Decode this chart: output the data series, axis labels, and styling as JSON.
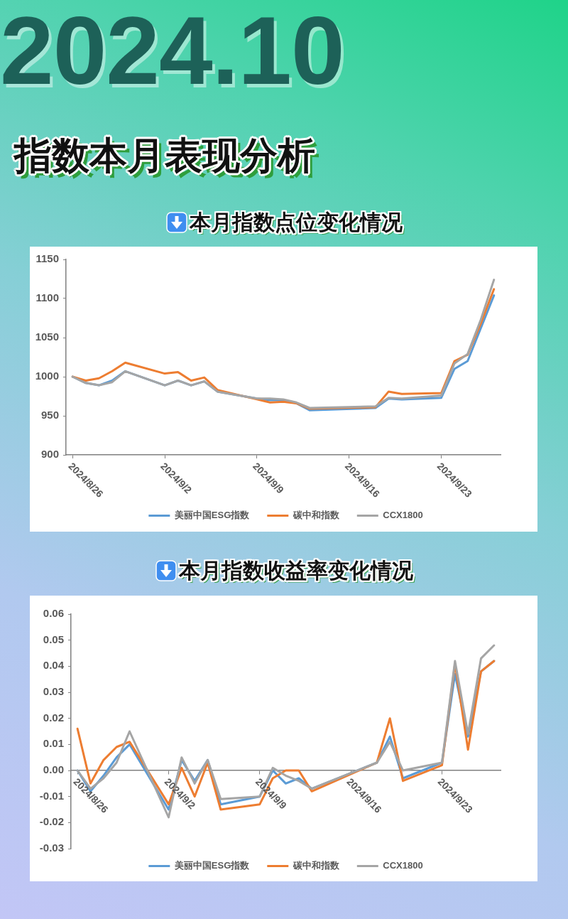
{
  "chart_data": [
    {
      "type": "line",
      "title": "指数本月表现分析",
      "subtitle": "本月指数点位变化情况",
      "annotations": [
        "2024.10"
      ],
      "x": [
        "2024-08-26",
        "2024-08-27",
        "2024-08-28",
        "2024-08-29",
        "2024-08-30",
        "2024-09-02",
        "2024-09-03",
        "2024-09-04",
        "2024-09-05",
        "2024-09-06",
        "2024-09-09",
        "2024-09-10",
        "2024-09-11",
        "2024-09-12",
        "2024-09-13",
        "2024-09-18",
        "2024-09-19",
        "2024-09-20",
        "2024-09-23",
        "2024-09-24",
        "2024-09-25",
        "2024-09-26",
        "2024-09-27"
      ],
      "series": [
        {
          "name": "美丽中国ESG指数",
          "color": "#5b9bd5",
          "values": [
            1000,
            992,
            989,
            995,
            1007,
            989,
            995,
            989,
            994,
            981,
            972,
            970,
            970,
            966,
            957,
            960,
            972,
            971,
            973,
            1010,
            1020,
            1062,
            1104
          ]
        },
        {
          "name": "碳中和指数",
          "color": "#ed7d31",
          "values": [
            1000,
            995,
            998,
            1007,
            1018,
            1004,
            1006,
            995,
            999,
            983,
            971,
            967,
            968,
            966,
            959,
            961,
            981,
            978,
            979,
            1020,
            1028,
            1068,
            1112
          ]
        },
        {
          "name": "CCX1800",
          "color": "#a5a5a5",
          "values": [
            1000,
            992,
            989,
            993,
            1007,
            989,
            995,
            989,
            994,
            981,
            972,
            972,
            971,
            967,
            960,
            962,
            973,
            972,
            976,
            1017,
            1029,
            1073,
            1124
          ]
        }
      ],
      "xlim": [
        "2024-08-25T12:00",
        "2024-09-27T12:00"
      ],
      "xticks": [
        {
          "value": "2024-08-26",
          "label": "2024/8/26"
        },
        {
          "value": "2024-09-02",
          "label": "2024/9/2"
        },
        {
          "value": "2024-09-09",
          "label": "2024/9/9"
        },
        {
          "value": "2024-09-16",
          "label": "2024/9/16"
        },
        {
          "value": "2024-09-23",
          "label": "2024/9/23"
        }
      ],
      "ylim": [
        900,
        1150
      ],
      "yticks": [
        900,
        950,
        1000,
        1050,
        1100,
        1150
      ],
      "legend": "bottom"
    },
    {
      "type": "line",
      "title": "本月指数收益率变化情况",
      "x": [
        "2024-08-26",
        "2024-08-27",
        "2024-08-28",
        "2024-08-29",
        "2024-08-30",
        "2024-09-02",
        "2024-09-03",
        "2024-09-04",
        "2024-09-05",
        "2024-09-06",
        "2024-09-09",
        "2024-09-10",
        "2024-09-11",
        "2024-09-12",
        "2024-09-13",
        "2024-09-18",
        "2024-09-19",
        "2024-09-20",
        "2024-09-23",
        "2024-09-24",
        "2024-09-25",
        "2024-09-26",
        "2024-09-27"
      ],
      "series": [
        {
          "name": "美丽中国ESG指数",
          "color": "#5b9bd5",
          "values": [
            0.0,
            -0.008,
            -0.002,
            0.005,
            0.01,
            -0.015,
            0.004,
            -0.004,
            0.004,
            -0.013,
            -0.01,
            0.0,
            -0.005,
            -0.003,
            -0.007,
            0.003,
            0.013,
            -0.003,
            0.003,
            0.037,
            0.013,
            0.038,
            0.042
          ]
        },
        {
          "name": "碳中和指数",
          "color": "#ed7d31",
          "values": [
            0.016,
            -0.005,
            0.004,
            0.009,
            0.011,
            -0.013,
            0.001,
            -0.01,
            0.003,
            -0.015,
            -0.013,
            -0.003,
            0.0,
            0.0,
            -0.008,
            0.003,
            0.02,
            -0.004,
            0.002,
            0.041,
            0.008,
            0.038,
            0.042
          ]
        },
        {
          "name": "CCX1800",
          "color": "#a5a5a5",
          "values": [
            0.0,
            -0.007,
            -0.003,
            0.003,
            0.015,
            -0.018,
            0.005,
            -0.005,
            0.004,
            -0.011,
            -0.01,
            0.001,
            -0.002,
            -0.004,
            -0.007,
            0.003,
            0.011,
            0.0,
            0.003,
            0.042,
            0.014,
            0.043,
            0.048
          ]
        }
      ],
      "xlim": [
        "2024-08-25T12:00",
        "2024-09-27T12:00"
      ],
      "xticks": [
        {
          "value": "2024-08-26",
          "label": "2024/8/26"
        },
        {
          "value": "2024-09-02",
          "label": "2024/9/2"
        },
        {
          "value": "2024-09-09",
          "label": "2024/9/9"
        },
        {
          "value": "2024-09-16",
          "label": "2024/9/16"
        },
        {
          "value": "2024-09-23",
          "label": "2024/9/23"
        }
      ],
      "ylim": [
        -0.03,
        0.06
      ],
      "yticks": [
        -0.03,
        -0.02,
        -0.01,
        {
          "value": 0,
          "label": "0.00"
        },
        0.01,
        0.02,
        0.03,
        0.04,
        0.05,
        0.06
      ],
      "legend": "bottom"
    }
  ]
}
